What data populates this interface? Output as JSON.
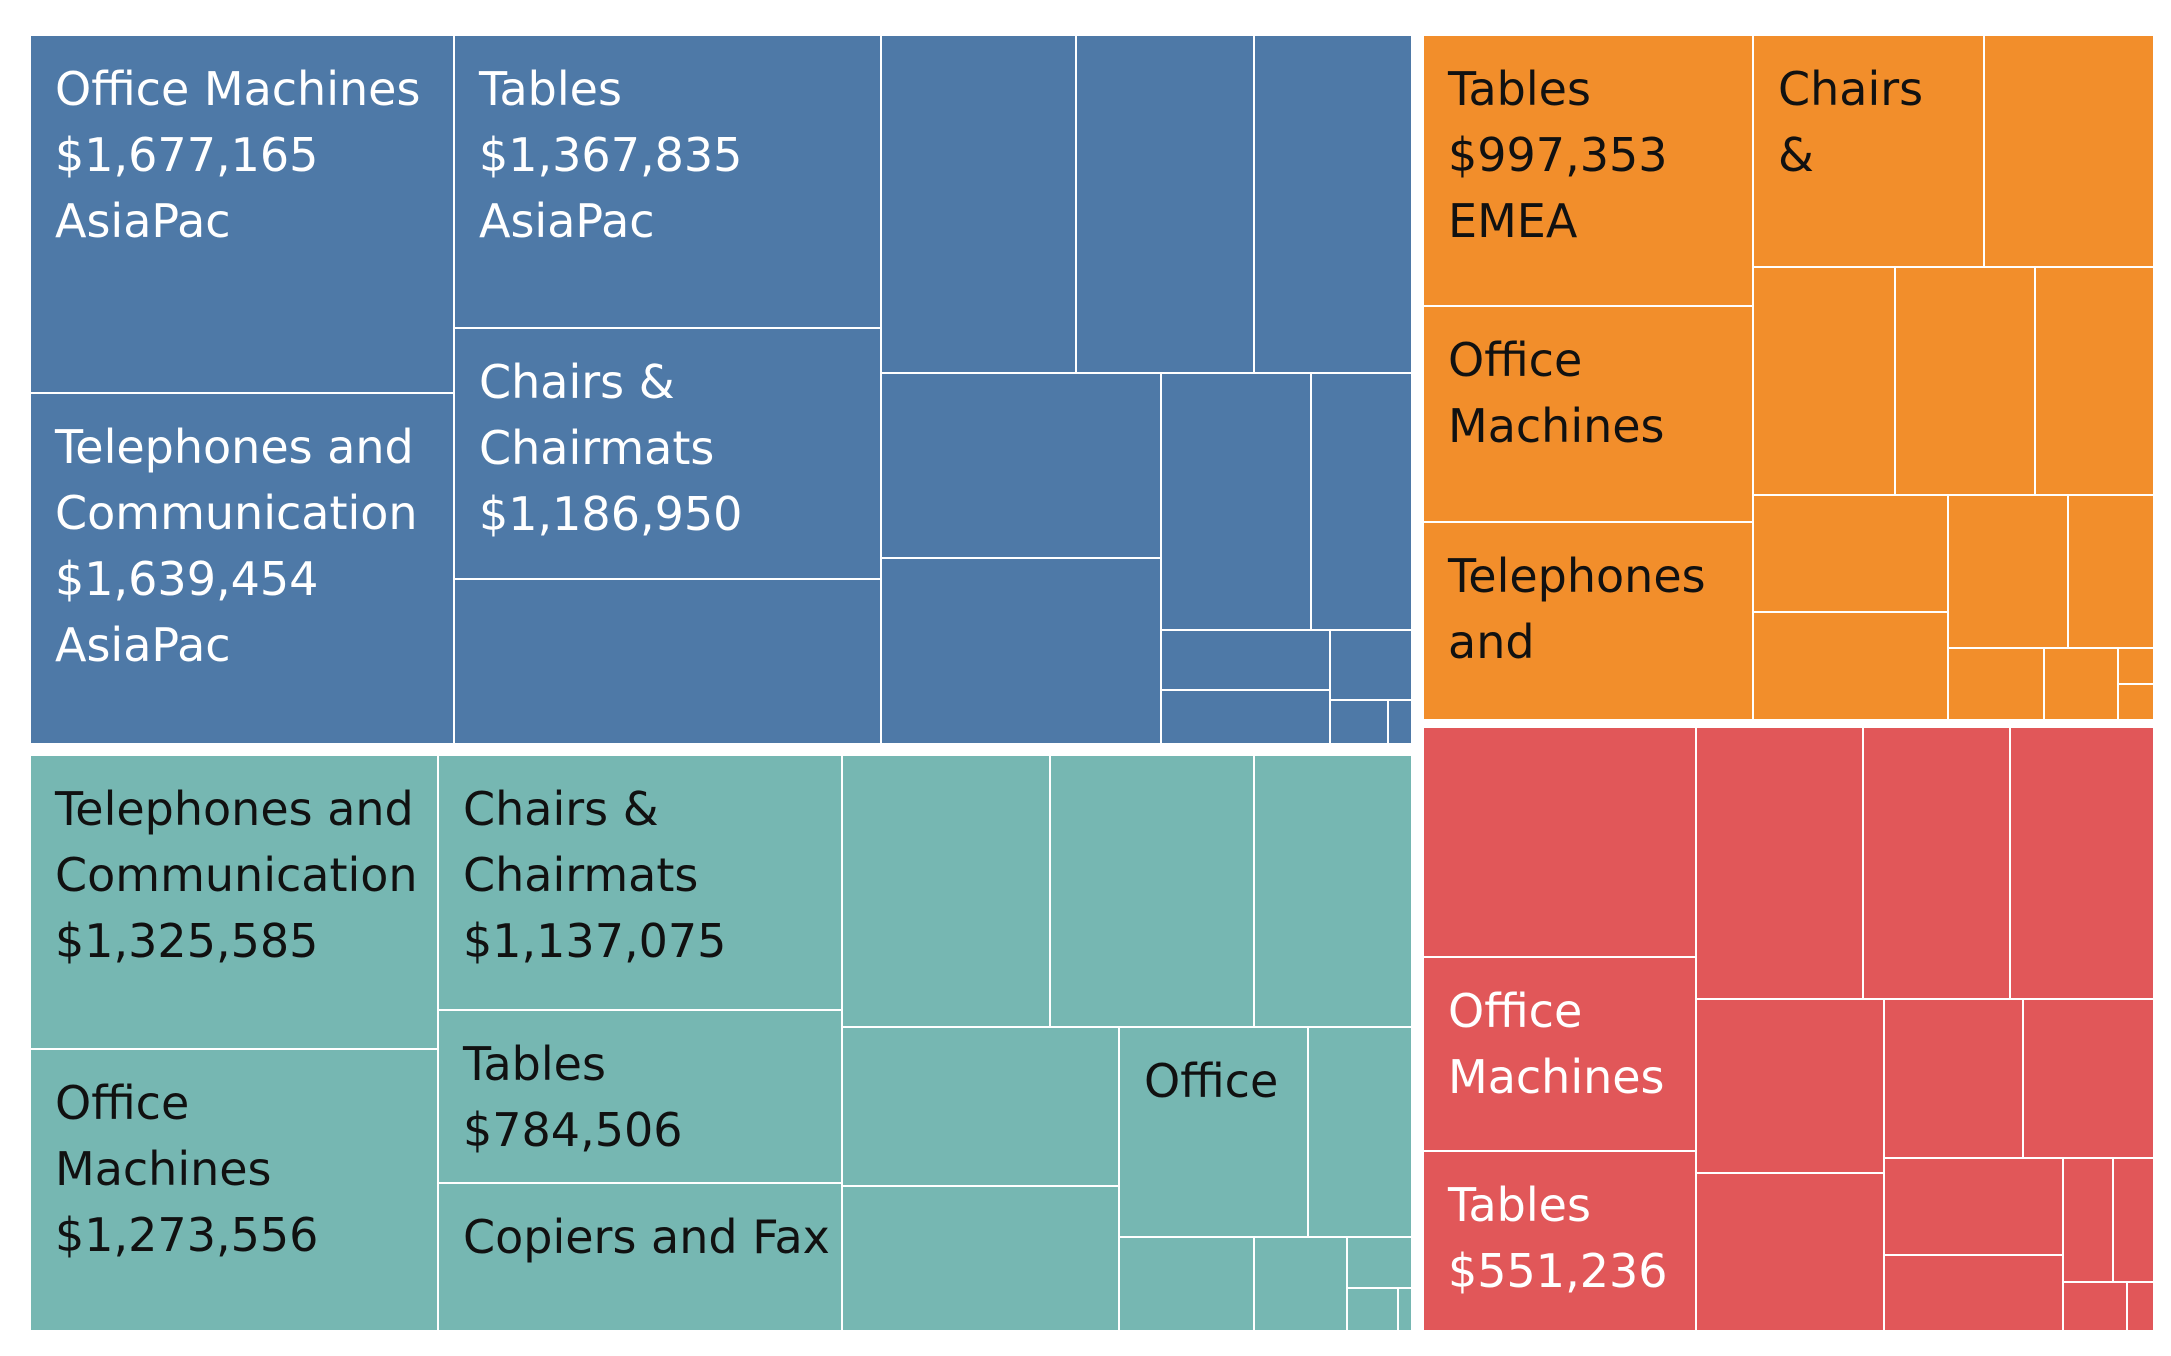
{
  "chart_data": {
    "type": "treemap",
    "colors": {
      "AsiaPac": "#4e79a7",
      "teal_group": "#76b7b2",
      "EMEA": "#f28e2b",
      "red_group": "#e15759",
      "border": "#ffffff",
      "label_on_blue": "#ffffff",
      "label_on_teal": "#111111",
      "label_on_orange": "#111111",
      "label_on_red": "#ffffff"
    },
    "groups": [
      {
        "region": "AsiaPac",
        "color_key": "AsiaPac",
        "label_color_key": "label_on_blue",
        "tiles": [
          {
            "category": "Office Machines",
            "value": 1677165,
            "label_lines": [
              "Office Machines",
              "$1,677,165",
              "AsiaPac"
            ]
          },
          {
            "category": "Telephones and Communication",
            "value": 1639454,
            "label_lines": [
              "Telephones and",
              "Communication",
              "$1,639,454",
              "AsiaPac"
            ]
          },
          {
            "category": "Tables",
            "value": 1367835,
            "label_lines": [
              "Tables",
              "$1,367,835",
              "AsiaPac"
            ]
          },
          {
            "category": "Chairs & Chairmats",
            "value": 1186950,
            "label_lines": [
              "Chairs &",
              "Chairmats",
              "$1,186,950"
            ]
          }
        ]
      },
      {
        "region": "",
        "color_key": "teal_group",
        "label_color_key": "label_on_teal",
        "tiles": [
          {
            "category": "Telephones and Communication",
            "value": 1325585,
            "label_lines": [
              "Telephones and",
              "Communication",
              "$1,325,585"
            ]
          },
          {
            "category": "Office Machines",
            "value": 1273556,
            "label_lines": [
              "Office",
              "Machines",
              "$1,273,556"
            ]
          },
          {
            "category": "Chairs & Chairmats",
            "value": 1137075,
            "label_lines": [
              "Chairs &",
              "Chairmats",
              "$1,137,075"
            ]
          },
          {
            "category": "Tables",
            "value": 784506,
            "label_lines": [
              "Tables",
              "$784,506"
            ]
          },
          {
            "category": "Copiers and Fax",
            "value": null,
            "label_lines": [
              "Copiers and Fax"
            ]
          },
          {
            "category": "Office",
            "value": null,
            "label_lines": [
              "Office"
            ]
          }
        ]
      },
      {
        "region": "EMEA",
        "color_key": "EMEA",
        "label_color_key": "label_on_orange",
        "tiles": [
          {
            "category": "Tables",
            "value": 997353,
            "label_lines": [
              "Tables",
              "$997,353",
              "EMEA"
            ]
          },
          {
            "category": "Office Machines",
            "value": null,
            "label_lines": [
              "Office",
              "Machines"
            ]
          },
          {
            "category": "Telephones and Communication",
            "value": null,
            "label_lines": [
              "Telephones",
              "and"
            ]
          },
          {
            "category": "Chairs & Chairmats",
            "value": null,
            "label_lines": [
              "Chairs",
              "&"
            ]
          }
        ]
      },
      {
        "region": "",
        "color_key": "red_group",
        "label_color_key": "label_on_red",
        "tiles": [
          {
            "category": "Office Machines",
            "value": null,
            "label_lines": [
              "Office",
              "Machines"
            ]
          },
          {
            "category": "Tables",
            "value": 551236,
            "label_lines": [
              "Tables",
              "$551,236"
            ]
          }
        ]
      }
    ]
  }
}
